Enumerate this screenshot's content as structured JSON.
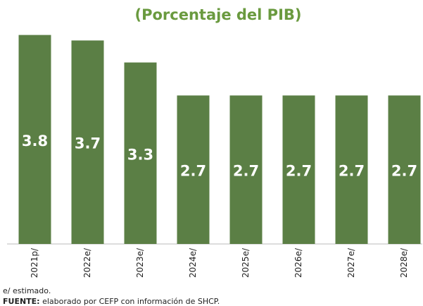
{
  "chart_data": {
    "type": "bar",
    "title": "(Porcentaje del PIB)",
    "categories": [
      "2021p/",
      "2022e/",
      "2023e/",
      "2024e/",
      "2025e/",
      "2026e/",
      "2027e/",
      "2028e/"
    ],
    "values": [
      3.8,
      3.7,
      3.3,
      2.7,
      2.7,
      2.7,
      2.7,
      2.7
    ],
    "color": "#5b7f45",
    "ylim": [
      0,
      4
    ],
    "notes": [
      "e/ estimado."
    ],
    "source_label": "FUENTE:",
    "source_text": " elaborado por CEFP con información de SHCP."
  }
}
